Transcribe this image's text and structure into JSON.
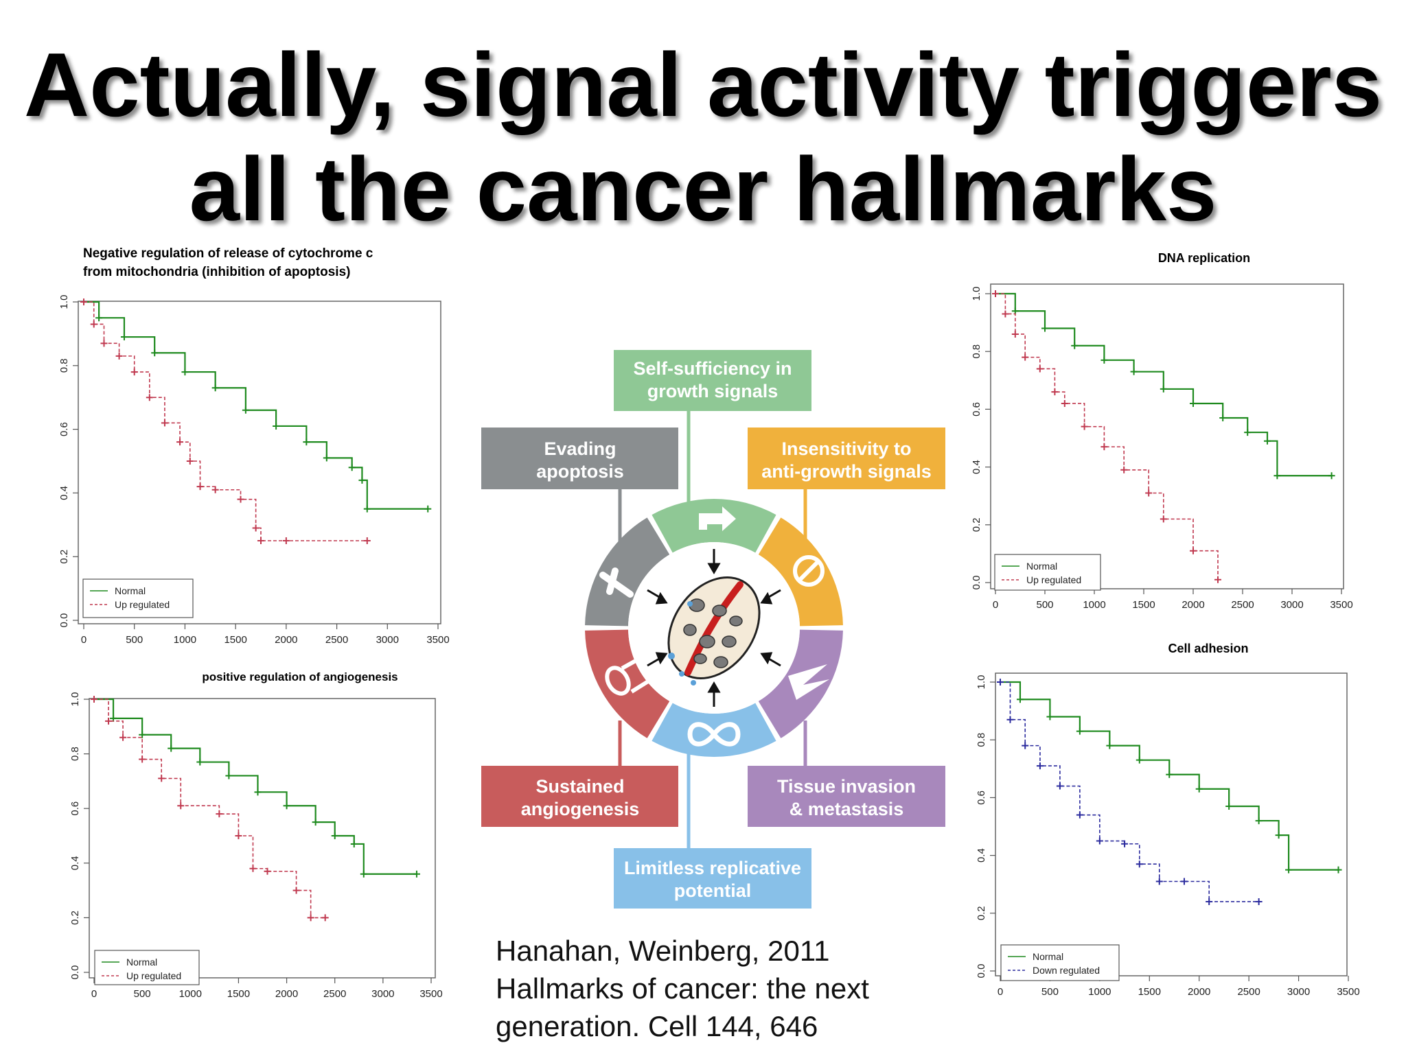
{
  "slide": {
    "title_line1": "Actually, signal activity triggers",
    "title_line2": "all the cancer hallmarks"
  },
  "colors": {
    "normal_line": "#1e8a1e",
    "up_line": "#c0394f",
    "down_line": "#2b2b9e",
    "growth": "#8fc895",
    "antigrowth": "#f0b13c",
    "invasion": "#a888bc",
    "replicative": "#88c0e8",
    "angiogenesis": "#c85c5c",
    "apoptosis": "#8a8e90"
  },
  "plots": [
    {
      "id": "cytochrome",
      "title_lines": [
        "Negative regulation of release of cytochrome c",
        "from mitochondria (inhibition of apoptosis)"
      ],
      "legend": [
        "Normal",
        "Up regulated"
      ],
      "chart_data": {
        "type": "line",
        "xlim": [
          0,
          3500
        ],
        "ylim": [
          0,
          1.0
        ],
        "x_ticks": [
          "0",
          "500",
          "1000",
          "1500",
          "2000",
          "2500",
          "3000",
          "3500"
        ],
        "y_ticks": [
          "0.0",
          "0.2",
          "0.4",
          "0.6",
          "0.8",
          "1.0"
        ],
        "series": [
          {
            "name": "Normal",
            "style": "solid",
            "x": [
              0,
              150,
              400,
              700,
              1000,
              1300,
              1600,
              1900,
              2200,
              2400,
              2650,
              2750,
              2800,
              3400
            ],
            "y": [
              1.0,
              0.95,
              0.89,
              0.84,
              0.78,
              0.73,
              0.66,
              0.61,
              0.56,
              0.51,
              0.48,
              0.44,
              0.35,
              0.35
            ]
          },
          {
            "name": "Up regulated",
            "style": "dashed",
            "x": [
              0,
              100,
              200,
              350,
              500,
              650,
              800,
              950,
              1050,
              1150,
              1300,
              1550,
              1700,
              1750,
              2000,
              2800
            ],
            "y": [
              1.0,
              0.93,
              0.87,
              0.83,
              0.78,
              0.7,
              0.62,
              0.56,
              0.5,
              0.42,
              0.41,
              0.38,
              0.29,
              0.25,
              0.25,
              0.25
            ]
          }
        ]
      }
    },
    {
      "id": "angiogenesis",
      "title_lines": [
        "positive regulation of angiogenesis"
      ],
      "legend": [
        "Normal",
        "Up regulated"
      ],
      "chart_data": {
        "type": "line",
        "xlim": [
          0,
          3500
        ],
        "ylim": [
          0,
          1.0
        ],
        "x_ticks": [
          "0",
          "500",
          "1000",
          "1500",
          "2000",
          "2500",
          "3000",
          "3500"
        ],
        "y_ticks": [
          "0.0",
          "0.2",
          "0.4",
          "0.6",
          "0.8",
          "1.0"
        ],
        "series": [
          {
            "name": "Normal",
            "style": "solid",
            "x": [
              0,
              200,
              500,
              800,
              1100,
              1400,
              1700,
              2000,
              2300,
              2500,
              2700,
              2800,
              3350
            ],
            "y": [
              1.0,
              0.93,
              0.87,
              0.82,
              0.77,
              0.72,
              0.66,
              0.61,
              0.55,
              0.5,
              0.47,
              0.36,
              0.36
            ]
          },
          {
            "name": "Up regulated",
            "style": "dashed",
            "x": [
              0,
              150,
              300,
              500,
              700,
              900,
              1300,
              1500,
              1650,
              1800,
              2100,
              2250,
              2400
            ],
            "y": [
              1.0,
              0.92,
              0.86,
              0.78,
              0.71,
              0.61,
              0.58,
              0.5,
              0.38,
              0.37,
              0.3,
              0.2,
              0.2
            ]
          }
        ]
      }
    },
    {
      "id": "dna",
      "title_lines": [
        "DNA replication"
      ],
      "legend": [
        "Normal",
        "Up regulated"
      ],
      "chart_data": {
        "type": "line",
        "xlim": [
          0,
          3500
        ],
        "ylim": [
          0,
          1.0
        ],
        "x_ticks": [
          "0",
          "500",
          "1000",
          "1500",
          "2000",
          "2500",
          "3000",
          "3500"
        ],
        "y_ticks": [
          "0.0",
          "0.2",
          "0.4",
          "0.6",
          "0.8",
          "1.0"
        ],
        "series": [
          {
            "name": "Normal",
            "style": "solid",
            "x": [
              0,
              200,
              500,
              800,
              1100,
              1400,
              1700,
              2000,
              2300,
              2550,
              2750,
              2850,
              3400
            ],
            "y": [
              1.0,
              0.94,
              0.88,
              0.82,
              0.77,
              0.73,
              0.67,
              0.62,
              0.57,
              0.52,
              0.49,
              0.37,
              0.37
            ]
          },
          {
            "name": "Up regulated",
            "style": "dashed",
            "x": [
              0,
              100,
              200,
              300,
              450,
              600,
              700,
              900,
              1100,
              1300,
              1550,
              1700,
              2000,
              2250
            ],
            "y": [
              1.0,
              0.93,
              0.86,
              0.78,
              0.74,
              0.66,
              0.62,
              0.54,
              0.47,
              0.39,
              0.31,
              0.22,
              0.11,
              0.01
            ]
          }
        ]
      }
    },
    {
      "id": "adhesion",
      "title_lines": [
        "Cell adhesion"
      ],
      "legend": [
        "Normal",
        "Down regulated"
      ],
      "chart_data": {
        "type": "line",
        "xlim": [
          0,
          3500
        ],
        "ylim": [
          0,
          1.0
        ],
        "x_ticks": [
          "0",
          "500",
          "1000",
          "1500",
          "2000",
          "2500",
          "3000",
          "3500"
        ],
        "y_ticks": [
          "0.0",
          "0.2",
          "0.4",
          "0.6",
          "0.8",
          "1.0"
        ],
        "series": [
          {
            "name": "Normal",
            "style": "solid",
            "x": [
              0,
              200,
              500,
              800,
              1100,
              1400,
              1700,
              2000,
              2300,
              2600,
              2800,
              2900,
              3400
            ],
            "y": [
              1.0,
              0.94,
              0.88,
              0.83,
              0.78,
              0.73,
              0.68,
              0.63,
              0.57,
              0.52,
              0.47,
              0.35,
              0.35
            ]
          },
          {
            "name": "Down regulated",
            "style": "dashed",
            "x": [
              0,
              100,
              250,
              400,
              600,
              800,
              1000,
              1250,
              1400,
              1600,
              1850,
              2100,
              2600
            ],
            "y": [
              1.0,
              0.87,
              0.78,
              0.71,
              0.64,
              0.54,
              0.45,
              0.44,
              0.37,
              0.31,
              0.31,
              0.24,
              0.24
            ]
          }
        ]
      }
    }
  ],
  "hallmarks": {
    "growth_line1": "Self-sufficiency in",
    "growth_line2": "growth signals",
    "apoptosis_line1": "Evading",
    "apoptosis_line2": "apoptosis",
    "antigrowth_line1": "Insensitivity to",
    "antigrowth_line2": "anti-growth signals",
    "angiogenesis_line1": "Sustained",
    "angiogenesis_line2": "angiogenesis",
    "invasion_line1": "Tissue invasion",
    "invasion_line2": "& metastasis",
    "replicative_line1": "Limitless replicative",
    "replicative_line2": "potential"
  },
  "citation": {
    "line1": "Hanahan, Weinberg, 2011",
    "line2": "Hallmarks of cancer: the next",
    "line3": "generation. Cell 144, 646"
  }
}
